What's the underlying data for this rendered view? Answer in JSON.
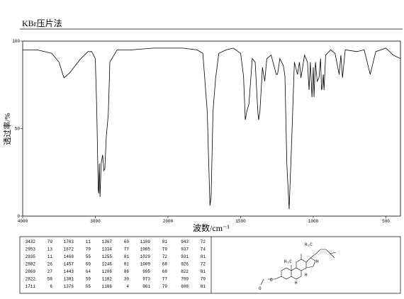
{
  "header": {
    "title": "KBr压片法"
  },
  "chart_data": {
    "type": "line",
    "x_label": "波数/cm⁻¹",
    "y_label": "透过率/%",
    "x": [
      4000,
      3800,
      3600,
      3500,
      3432,
      3350,
      3200,
      3100,
      3050,
      3000,
      2980,
      2960,
      2953,
      2945,
      2935,
      2920,
      2900,
      2882,
      2869,
      2850,
      2822,
      2800,
      2700,
      2500,
      2200,
      2000,
      1900,
      1800,
      1760,
      1730,
      1711,
      1703,
      1690,
      1672,
      1650,
      1600,
      1550,
      1500,
      1480,
      1468,
      1457,
      1443,
      1420,
      1400,
      1381,
      1376,
      1367,
      1350,
      1334,
      1320,
      1290,
      1255,
      1246,
      1230,
      1206,
      1195,
      1182,
      1166,
      1150,
      1130,
      1109,
      1095,
      1085,
      1060,
      1040,
      1029,
      1020,
      1009,
      1000,
      995,
      985,
      973,
      961,
      950,
      943,
      937,
      931,
      926,
      915,
      880,
      850,
      822,
      810,
      799,
      780,
      700,
      650,
      608,
      570,
      500,
      450,
      400
    ],
    "series": [
      {
        "color": "#000000",
        "values": [
          95,
          95,
          93,
          88,
          79,
          82,
          90,
          94,
          94,
          90,
          60,
          15,
          13,
          30,
          11,
          30,
          35,
          26,
          27,
          45,
          58,
          88,
          95,
          95,
          96,
          96,
          96,
          95,
          93,
          60,
          6,
          11,
          60,
          79,
          93,
          95,
          96,
          93,
          80,
          55,
          60,
          64,
          90,
          88,
          59,
          55,
          60,
          85,
          77,
          90,
          92,
          81,
          81,
          90,
          86,
          80,
          30,
          4,
          40,
          88,
          81,
          88,
          79,
          92,
          88,
          72,
          88,
          68,
          85,
          68,
          88,
          77,
          79,
          90,
          72,
          74,
          81,
          72,
          92,
          95,
          93,
          81,
          92,
          79,
          95,
          94,
          95,
          81,
          94,
          96,
          92,
          90
        ]
      }
    ],
    "xlim": [
      4000,
      400
    ],
    "xticks": [
      4000,
      3000,
      2000,
      1500,
      1000,
      500
    ],
    "ylim": [
      0,
      100
    ],
    "yticks": [
      0,
      50,
      100
    ]
  },
  "peak_table": {
    "rows": [
      [
        3432,
        79,
        1703,
        11,
        1367,
        60,
        1109,
        81,
        943,
        72
      ],
      [
        2953,
        13,
        1672,
        79,
        1334,
        77,
        1085,
        79,
        937,
        74
      ],
      [
        2935,
        11,
        1468,
        55,
        1255,
        81,
        1029,
        72,
        931,
        81
      ],
      [
        2882,
        26,
        1457,
        60,
        1246,
        81,
        1009,
        68,
        926,
        72
      ],
      [
        2869,
        27,
        1443,
        64,
        1206,
        86,
        995,
        68,
        822,
        81
      ],
      [
        2822,
        58,
        1381,
        59,
        1182,
        30,
        973,
        77,
        799,
        79
      ],
      [
        1711,
        6,
        1376,
        55,
        1166,
        4,
        961,
        79,
        608,
        81
      ]
    ]
  },
  "structure": {
    "labels": [
      "H₃C",
      "H₃C",
      "H",
      "H",
      "H",
      "O",
      "O"
    ]
  }
}
